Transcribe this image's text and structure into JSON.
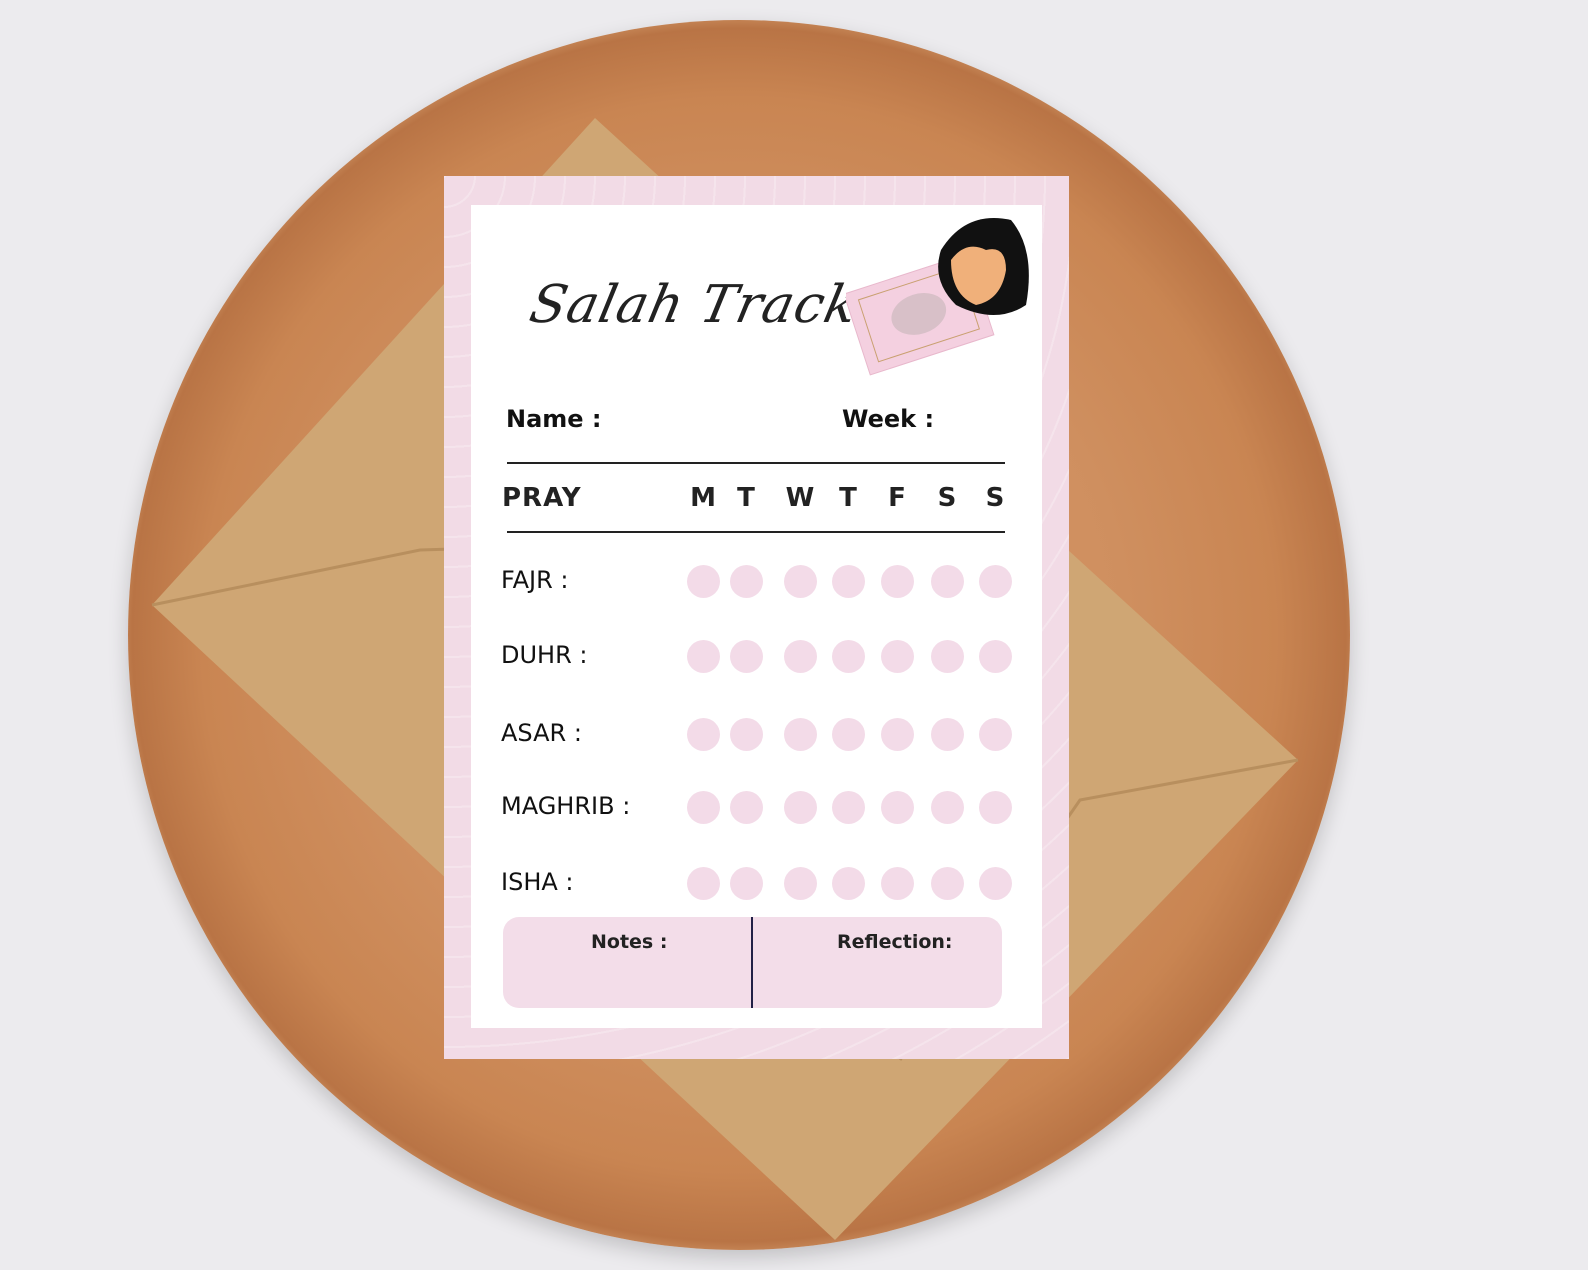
{
  "title": "Salah Tracker",
  "fields": {
    "name": "Name  :",
    "week": "Week :"
  },
  "header": {
    "pray": "PRAY",
    "days": [
      "M",
      "T",
      "W",
      "T",
      "F",
      "S",
      "S"
    ]
  },
  "prayers": [
    {
      "label": "FAJR :",
      "checked": [
        false,
        false,
        false,
        false,
        false,
        false,
        false
      ]
    },
    {
      "label": "DUHR :",
      "checked": [
        false,
        false,
        false,
        false,
        false,
        false,
        false
      ]
    },
    {
      "label": "ASAR :",
      "checked": [
        false,
        false,
        false,
        false,
        false,
        false,
        false
      ]
    },
    {
      "label": "MAGHRIB :",
      "checked": [
        false,
        false,
        false,
        false,
        false,
        false,
        false
      ]
    },
    {
      "label": "ISHA :",
      "checked": [
        false,
        false,
        false,
        false,
        false,
        false,
        false
      ]
    }
  ],
  "footer": {
    "notes": "Notes :",
    "reflection": "Reflection:"
  },
  "colors": {
    "card_border": "#f2dbe6",
    "dot": "#f3dbe8",
    "notes_bg": "#f3dde9"
  }
}
